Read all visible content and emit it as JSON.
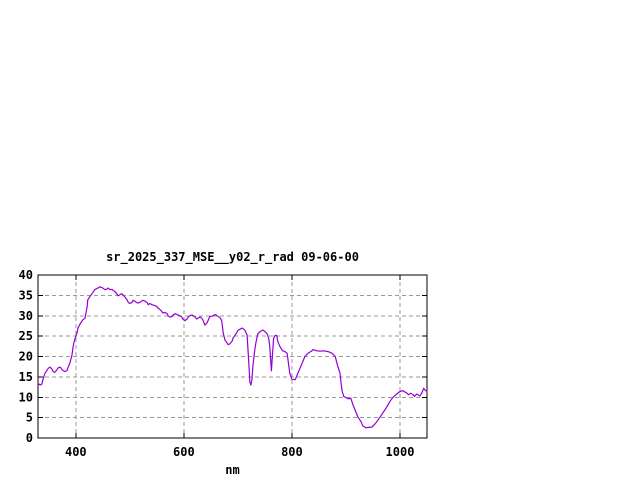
{
  "chart_data": {
    "type": "line",
    "title": "sr_2025_337_MSE__y02_r_rad 09-06-00",
    "xlabel": "nm",
    "ylabel": "",
    "xlim": [
      330,
      1050
    ],
    "ylim": [
      0,
      40
    ],
    "xticks": [
      400,
      600,
      800,
      1000
    ],
    "yticks": [
      0,
      5,
      10,
      15,
      20,
      25,
      30,
      35,
      40
    ],
    "grid": true,
    "legend": false,
    "colors": {
      "line": "#9400d3",
      "grid": "#999999",
      "axis": "#000000",
      "background": "#ffffff",
      "text": "#000000"
    },
    "series": [
      {
        "name": "sr_2025_337_MSE__y02_r_rad",
        "color": "#9400d3",
        "points": [
          [
            330,
            13.4
          ],
          [
            334,
            13.0
          ],
          [
            337,
            13.2
          ],
          [
            339,
            14.3
          ],
          [
            343,
            15.9
          ],
          [
            347,
            16.7
          ],
          [
            349,
            17.1
          ],
          [
            352,
            17.4
          ],
          [
            356,
            16.9
          ],
          [
            358,
            16.3
          ],
          [
            361,
            16.1
          ],
          [
            365,
            16.7
          ],
          [
            367,
            17.2
          ],
          [
            371,
            17.4
          ],
          [
            376,
            16.6
          ],
          [
            380,
            16.3
          ],
          [
            384,
            16.6
          ],
          [
            385,
            17.1
          ],
          [
            389,
            18.4
          ],
          [
            393,
            20.4
          ],
          [
            395,
            22.4
          ],
          [
            397,
            23.7
          ],
          [
            400,
            24.9
          ],
          [
            402,
            25.7
          ],
          [
            404,
            27.0
          ],
          [
            408,
            28.0
          ],
          [
            411,
            28.6
          ],
          [
            413,
            29.0
          ],
          [
            417,
            29.4
          ],
          [
            421,
            32.3
          ],
          [
            422,
            33.9
          ],
          [
            426,
            34.7
          ],
          [
            430,
            35.4
          ],
          [
            435,
            36.4
          ],
          [
            441,
            36.8
          ],
          [
            445,
            37.1
          ],
          [
            450,
            36.8
          ],
          [
            454,
            36.4
          ],
          [
            458,
            36.6
          ],
          [
            460,
            36.8
          ],
          [
            463,
            36.4
          ],
          [
            467,
            36.5
          ],
          [
            469,
            36.2
          ],
          [
            472,
            36.0
          ],
          [
            476,
            35.4
          ],
          [
            478,
            34.9
          ],
          [
            482,
            35.2
          ],
          [
            485,
            35.4
          ],
          [
            487,
            35.2
          ],
          [
            491,
            34.6
          ],
          [
            495,
            33.9
          ],
          [
            497,
            33.3
          ],
          [
            500,
            33.0
          ],
          [
            504,
            33.3
          ],
          [
            506,
            33.8
          ],
          [
            509,
            33.6
          ],
          [
            513,
            33.2
          ],
          [
            515,
            33.1
          ],
          [
            519,
            33.3
          ],
          [
            522,
            33.6
          ],
          [
            524,
            33.8
          ],
          [
            528,
            33.6
          ],
          [
            532,
            33.2
          ],
          [
            534,
            32.7
          ],
          [
            537,
            33.0
          ],
          [
            541,
            32.7
          ],
          [
            546,
            32.5
          ],
          [
            550,
            32.3
          ],
          [
            552,
            31.9
          ],
          [
            556,
            31.5
          ],
          [
            559,
            31.1
          ],
          [
            561,
            30.7
          ],
          [
            565,
            30.8
          ],
          [
            569,
            30.5
          ],
          [
            571,
            30.0
          ],
          [
            574,
            29.7
          ],
          [
            578,
            29.8
          ],
          [
            580,
            30.2
          ],
          [
            584,
            30.5
          ],
          [
            589,
            30.2
          ],
          [
            593,
            30.0
          ],
          [
            596,
            29.7
          ],
          [
            598,
            29.2
          ],
          [
            602,
            28.8
          ],
          [
            606,
            29.2
          ],
          [
            608,
            29.7
          ],
          [
            611,
            30.0
          ],
          [
            615,
            30.2
          ],
          [
            617,
            30.0
          ],
          [
            621,
            29.7
          ],
          [
            624,
            29.2
          ],
          [
            626,
            29.4
          ],
          [
            630,
            29.7
          ],
          [
            633,
            29.4
          ],
          [
            635,
            29.0
          ],
          [
            639,
            27.7
          ],
          [
            643,
            28.3
          ],
          [
            648,
            29.8
          ],
          [
            652,
            29.9
          ],
          [
            658,
            30.3
          ],
          [
            663,
            29.9
          ],
          [
            667,
            29.5
          ],
          [
            670,
            28.8
          ],
          [
            673,
            25.7
          ],
          [
            676,
            24.1
          ],
          [
            680,
            23.3
          ],
          [
            682,
            22.9
          ],
          [
            685,
            23.1
          ],
          [
            689,
            23.7
          ],
          [
            691,
            24.5
          ],
          [
            695,
            25.3
          ],
          [
            698,
            25.9
          ],
          [
            700,
            26.4
          ],
          [
            704,
            26.7
          ],
          [
            708,
            27.0
          ],
          [
            711,
            26.7
          ],
          [
            713,
            26.4
          ],
          [
            717,
            25.3
          ],
          [
            719,
            20.8
          ],
          [
            721,
            16.7
          ],
          [
            722,
            13.8
          ],
          [
            724,
            13.0
          ],
          [
            726,
            14.3
          ],
          [
            728,
            17.9
          ],
          [
            732,
            22.4
          ],
          [
            735,
            24.5
          ],
          [
            737,
            25.6
          ],
          [
            741,
            26.1
          ],
          [
            746,
            26.5
          ],
          [
            750,
            26.1
          ],
          [
            754,
            25.6
          ],
          [
            757,
            24.5
          ],
          [
            759,
            22.4
          ],
          [
            762,
            16.5
          ],
          [
            766,
            24.5
          ],
          [
            769,
            25.2
          ],
          [
            772,
            25.1
          ],
          [
            774,
            23.6
          ],
          [
            778,
            22.4
          ],
          [
            783,
            21.4
          ],
          [
            787,
            21.2
          ],
          [
            791,
            20.8
          ],
          [
            796,
            15.9
          ],
          [
            800,
            14.4
          ],
          [
            806,
            14.3
          ],
          [
            811,
            15.9
          ],
          [
            819,
            18.4
          ],
          [
            824,
            20.0
          ],
          [
            830,
            20.8
          ],
          [
            837,
            21.4
          ],
          [
            839,
            21.7
          ],
          [
            846,
            21.4
          ],
          [
            852,
            21.3
          ],
          [
            859,
            21.4
          ],
          [
            867,
            21.2
          ],
          [
            874,
            20.8
          ],
          [
            880,
            20.0
          ],
          [
            885,
            17.5
          ],
          [
            889,
            15.9
          ],
          [
            891,
            13.4
          ],
          [
            893,
            11.4
          ],
          [
            896,
            10.2
          ],
          [
            902,
            9.8
          ],
          [
            905,
            9.6
          ],
          [
            909,
            9.8
          ],
          [
            913,
            8.1
          ],
          [
            918,
            6.5
          ],
          [
            922,
            5.2
          ],
          [
            928,
            4.0
          ],
          [
            931,
            3.0
          ],
          [
            937,
            2.5
          ],
          [
            942,
            2.6
          ],
          [
            948,
            2.7
          ],
          [
            952,
            3.2
          ],
          [
            957,
            4.0
          ],
          [
            963,
            5.1
          ],
          [
            968,
            6.1
          ],
          [
            972,
            6.9
          ],
          [
            976,
            7.7
          ],
          [
            981,
            8.9
          ],
          [
            987,
            10.0
          ],
          [
            994,
            10.8
          ],
          [
            1000,
            11.4
          ],
          [
            1005,
            11.6
          ],
          [
            1013,
            11.0
          ],
          [
            1016,
            10.6
          ],
          [
            1020,
            11.0
          ],
          [
            1024,
            10.6
          ],
          [
            1027,
            10.2
          ],
          [
            1031,
            10.8
          ],
          [
            1037,
            10.3
          ],
          [
            1040,
            11.0
          ],
          [
            1044,
            12.2
          ],
          [
            1046,
            11.8
          ],
          [
            1050,
            11.4
          ]
        ]
      }
    ]
  }
}
